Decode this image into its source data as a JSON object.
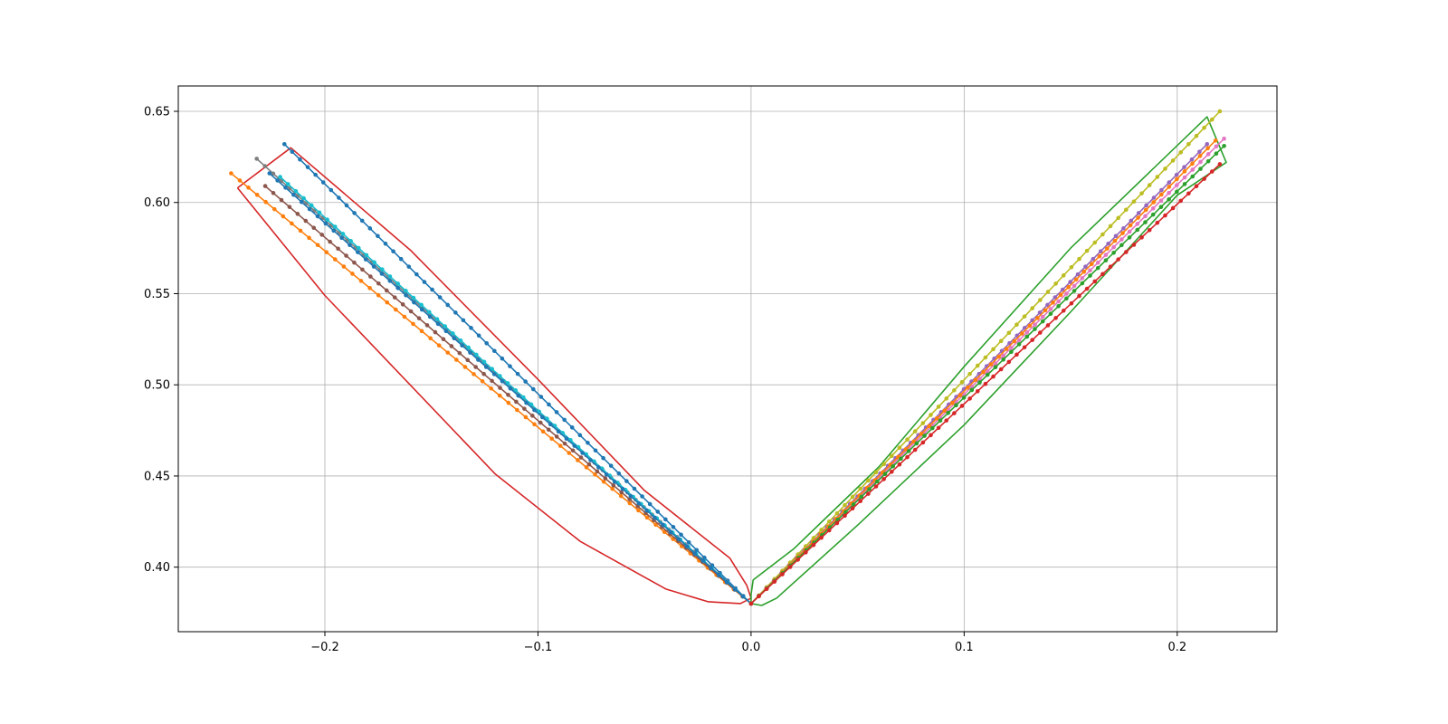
{
  "chart_data": {
    "type": "line",
    "title": "",
    "xlabel": "",
    "ylabel": "",
    "xlim": [
      -0.2688,
      0.2468
    ],
    "ylim": [
      0.3646,
      0.6639
    ],
    "grid": true,
    "x_ticks": [
      -0.2,
      -0.1,
      0.0,
      0.1,
      0.2
    ],
    "x_tick_labels": [
      "−0.2",
      "−0.1",
      "0.0",
      "0.1",
      "0.2"
    ],
    "y_ticks": [
      0.4,
      0.45,
      0.5,
      0.55,
      0.6,
      0.65
    ],
    "y_tick_labels": [
      "0.40",
      "0.45",
      "0.50",
      "0.55",
      "0.60",
      "0.65"
    ],
    "marked_series": [
      {
        "color": "#1f77b4",
        "start": [
          -0.219,
          0.632
        ],
        "end": [
          0.0,
          0.38
        ]
      },
      {
        "color": "#ff7f0e",
        "start": [
          -0.244,
          0.616
        ],
        "end": [
          0.0,
          0.38
        ]
      },
      {
        "color": "#7f7f7f",
        "start": [
          -0.232,
          0.624
        ],
        "end": [
          0.0,
          0.38
        ]
      },
      {
        "color": "#8c564b",
        "start": [
          -0.228,
          0.609
        ],
        "end": [
          0.0,
          0.38
        ]
      },
      {
        "color": "#17becf",
        "start": [
          -0.221,
          0.614
        ],
        "end": [
          0.0,
          0.38
        ]
      },
      {
        "color": "#1f77b4",
        "start": [
          -0.226,
          0.616
        ],
        "end": [
          0.0,
          0.38
        ]
      },
      {
        "color": "#bcbd22",
        "start": [
          0.0,
          0.38
        ],
        "end": [
          0.22,
          0.65
        ]
      },
      {
        "color": "#9467bd",
        "start": [
          0.0,
          0.38
        ],
        "end": [
          0.214,
          0.632
        ]
      },
      {
        "color": "#e377c2",
        "start": [
          0.0,
          0.38
        ],
        "end": [
          0.222,
          0.635
        ]
      },
      {
        "color": "#ff7f0e",
        "start": [
          0.0,
          0.38
        ],
        "end": [
          0.218,
          0.634
        ]
      },
      {
        "color": "#2ca02c",
        "start": [
          0.0,
          0.38
        ],
        "end": [
          0.222,
          0.631
        ]
      },
      {
        "color": "#d62728",
        "start": [
          0.0,
          0.38
        ],
        "end": [
          0.22,
          0.621
        ]
      }
    ],
    "hull_left": {
      "color": "#d62728",
      "points": [
        [
          -0.241,
          0.608
        ],
        [
          -0.216,
          0.63
        ],
        [
          -0.16,
          0.574
        ],
        [
          -0.1,
          0.503
        ],
        [
          -0.05,
          0.442
        ],
        [
          -0.01,
          0.405
        ],
        [
          -0.002,
          0.39
        ],
        [
          0.0,
          0.383
        ],
        [
          -0.005,
          0.38
        ],
        [
          -0.02,
          0.381
        ],
        [
          -0.04,
          0.388
        ],
        [
          -0.08,
          0.414
        ],
        [
          -0.12,
          0.451
        ],
        [
          -0.2,
          0.549
        ],
        [
          -0.241,
          0.608
        ]
      ]
    },
    "hull_right": {
      "color": "#2ca02c",
      "points": [
        [
          0.0,
          0.385
        ],
        [
          0.001,
          0.393
        ],
        [
          0.02,
          0.41
        ],
        [
          0.06,
          0.455
        ],
        [
          0.1,
          0.51
        ],
        [
          0.15,
          0.575
        ],
        [
          0.214,
          0.647
        ],
        [
          0.223,
          0.622
        ],
        [
          0.2,
          0.604
        ],
        [
          0.15,
          0.54
        ],
        [
          0.1,
          0.478
        ],
        [
          0.05,
          0.423
        ],
        [
          0.012,
          0.383
        ],
        [
          0.005,
          0.379
        ],
        [
          0.0,
          0.38
        ],
        [
          0.0,
          0.385
        ]
      ]
    }
  }
}
